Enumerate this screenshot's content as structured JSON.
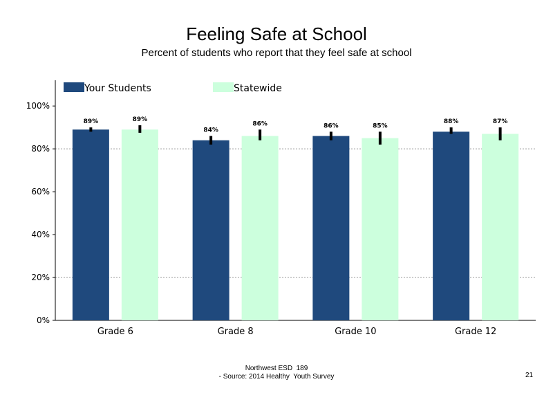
{
  "title": "Feeling Safe at School",
  "subtitle": "Percent of students who report that they feel safe at school",
  "footer": {
    "line1": "Northwest ESD  189",
    "line2": "- Source: 2014 Healthy  Youth Survey"
  },
  "page_number": "21",
  "colors": {
    "your_students": "#1F497D",
    "statewide": "#CCFFDD",
    "error_bar": "#000000",
    "grid": "#999999"
  },
  "chart_data": {
    "type": "bar",
    "title": "Feeling Safe at School",
    "subtitle": "Percent of students who report that they feel safe at school",
    "categories": [
      "Grade 6",
      "Grade 8",
      "Grade 10",
      "Grade 12"
    ],
    "series": [
      {
        "name": "Your Students",
        "values": [
          89,
          84,
          86,
          88
        ],
        "labels": [
          "89%",
          "84%",
          "86%",
          "88%"
        ],
        "error_low": [
          88,
          82,
          84,
          87
        ],
        "error_high": [
          90,
          86,
          88,
          90
        ]
      },
      {
        "name": "Statewide",
        "values": [
          89,
          86,
          85,
          87
        ],
        "labels": [
          "89%",
          "86%",
          "85%",
          "87%"
        ],
        "error_low": [
          87.5,
          84,
          82,
          84
        ],
        "error_high": [
          91,
          89,
          88,
          90
        ]
      }
    ],
    "ylim": [
      0,
      112
    ],
    "yticks": [
      0,
      20,
      40,
      60,
      80,
      100
    ],
    "ytick_labels": [
      "0%",
      "20%",
      "40%",
      "60%",
      "80%",
      "100%"
    ],
    "gridlines": [
      20,
      80
    ],
    "legend_position": "top-left",
    "xlabel": "",
    "ylabel": ""
  }
}
